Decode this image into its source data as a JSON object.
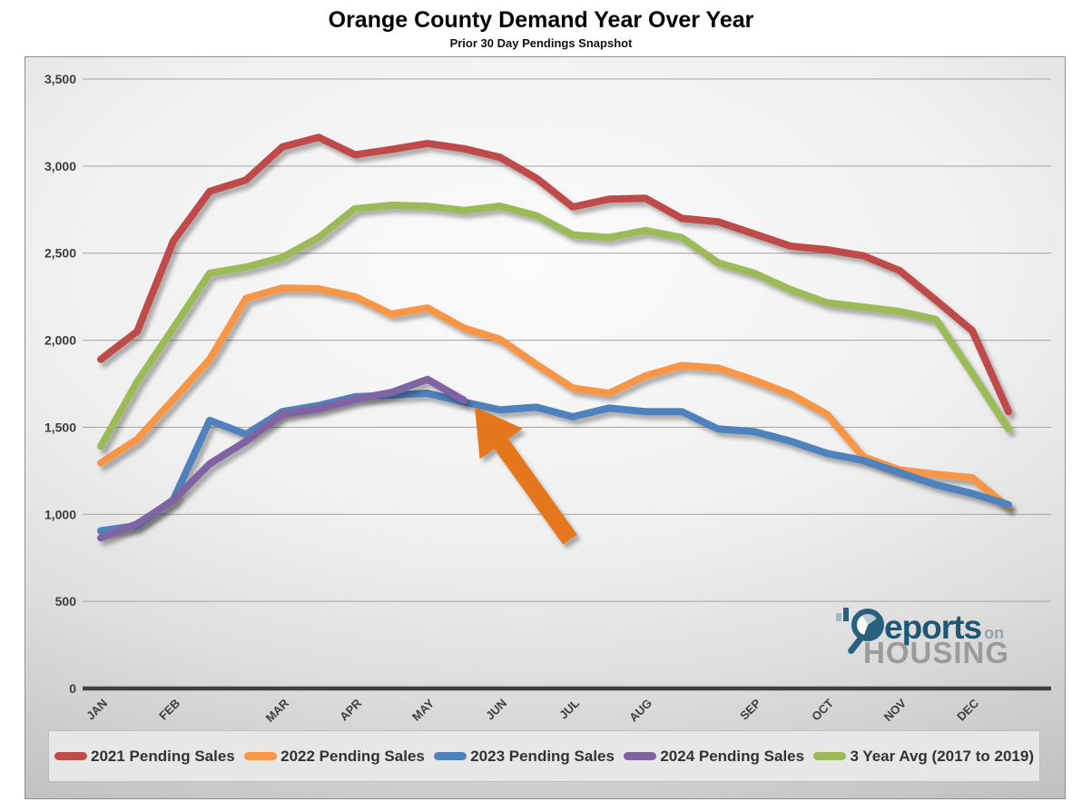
{
  "page": {
    "title": "Orange County Demand Year Over Year",
    "subtitle": "Prior 30 Day Pendings Snapshot"
  },
  "logo": {
    "reports": "eports",
    "on": "on",
    "housing": "HOUSING"
  },
  "chart_data": {
    "type": "line",
    "title": "Orange County Demand Year Over Year",
    "subtitle": "Prior 30 Day Pendings Snapshot",
    "sampling": "two readings per month (prior 30 day pendings snapshot)",
    "x_axis": {
      "months": [
        {
          "label": "JAN",
          "point_index": 0
        },
        {
          "label": "FEB",
          "point_index": 2
        },
        {
          "label": "MAR",
          "point_index": 5
        },
        {
          "label": "APR",
          "point_index": 7
        },
        {
          "label": "MAY",
          "point_index": 9
        },
        {
          "label": "JUN",
          "point_index": 11
        },
        {
          "label": "JUL",
          "point_index": 13
        },
        {
          "label": "AUG",
          "point_index": 15
        },
        {
          "label": "SEP",
          "point_index": 18
        },
        {
          "label": "OCT",
          "point_index": 20
        },
        {
          "label": "NOV",
          "point_index": 22
        },
        {
          "label": "DEC",
          "point_index": 24
        }
      ]
    },
    "y_axis": {
      "min": 0,
      "max": 3500,
      "step": 500,
      "tick_labels": [
        "0",
        "500",
        "1,000",
        "1,500",
        "2,000",
        "2,500",
        "3,000",
        "3,500"
      ]
    },
    "grid": true,
    "legend_position": "bottom",
    "series": [
      {
        "name": "2021 Pending Sales",
        "color": "#BE4C48",
        "values": [
          1890,
          2050,
          2570,
          2855,
          2920,
          3110,
          3165,
          3065,
          3095,
          3130,
          3100,
          3050,
          2930,
          2765,
          2810,
          2815,
          2700,
          2680,
          2610,
          2540,
          2520,
          2485,
          2400,
          2230,
          2055,
          1590
        ]
      },
      {
        "name": "2022 Pending Sales",
        "color": "#F79646",
        "values": [
          1295,
          1430,
          1660,
          1890,
          2240,
          2300,
          2295,
          2250,
          2150,
          2185,
          2070,
          2005,
          1860,
          1725,
          1695,
          1795,
          1855,
          1840,
          1770,
          1690,
          1575,
          1330,
          1255,
          1230,
          1210,
          1040
        ]
      },
      {
        "name": "2023 Pending Sales",
        "color": "#4F81BD",
        "values": [
          905,
          935,
          1085,
          1540,
          1460,
          1590,
          1625,
          1675,
          1685,
          1695,
          1645,
          1600,
          1615,
          1560,
          1610,
          1590,
          1590,
          1490,
          1475,
          1420,
          1350,
          1310,
          1240,
          1170,
          1120,
          1055
        ]
      },
      {
        "name": "2024 Pending Sales",
        "color": "#8064A2",
        "values": [
          865,
          945,
          1080,
          1290,
          1420,
          1575,
          1605,
          1660,
          1700,
          1775,
          1655
        ]
      },
      {
        "name": "3 Year Avg (2017 to 2019)",
        "color": "#9BBB59",
        "values": [
          1390,
          1760,
          2070,
          2385,
          2420,
          2475,
          2590,
          2755,
          2775,
          2770,
          2745,
          2770,
          2715,
          2605,
          2590,
          2630,
          2590,
          2445,
          2385,
          2290,
          2215,
          2190,
          2165,
          2120,
          1810,
          1490
        ]
      }
    ],
    "annotation_arrow": {
      "color": "#E4761E",
      "tip": [
        522,
        447
      ],
      "tail": [
        627,
        593
      ],
      "shaft_width": 19,
      "head_width": 58,
      "head_length": 50,
      "points_at": "end of 2024 Pending Sales line"
    }
  }
}
